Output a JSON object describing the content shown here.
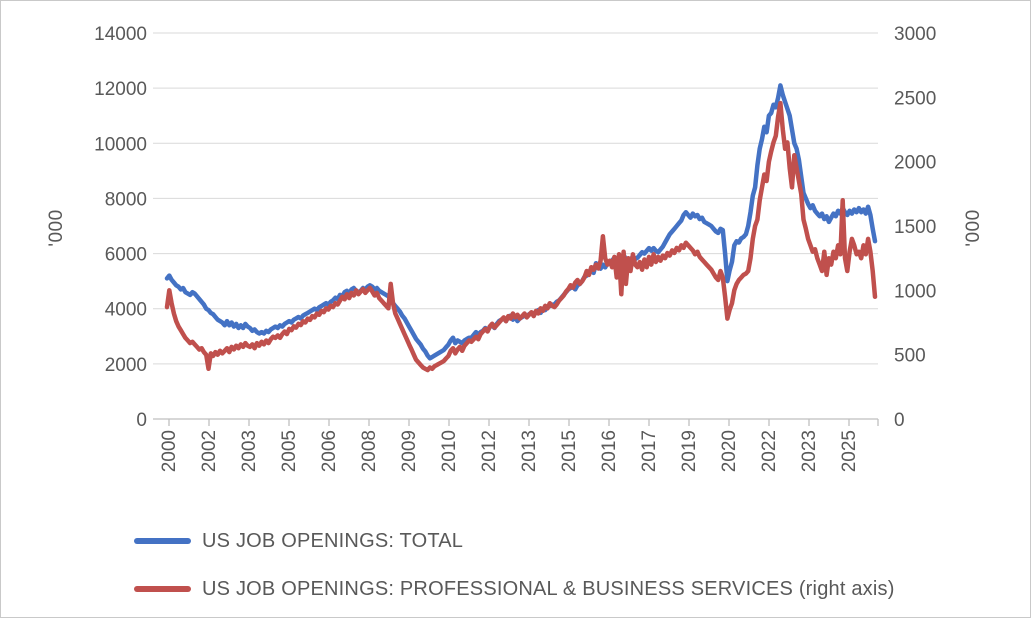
{
  "chart_data": {
    "type": "line",
    "title": "",
    "x_start_year": 2000,
    "x_months_per_point": 1,
    "x_tick_labels": [
      "2000",
      "2002",
      "2003",
      "2005",
      "2006",
      "2008",
      "2009",
      "2010",
      "2012",
      "2013",
      "2015",
      "2016",
      "2017",
      "2019",
      "2020",
      "2022",
      "2023",
      "2025"
    ],
    "left_axis": {
      "label": "'000",
      "ticks": [
        0,
        2000,
        4000,
        6000,
        8000,
        10000,
        12000,
        14000
      ],
      "min": 0,
      "max": 14000
    },
    "right_axis": {
      "label": "'000",
      "ticks": [
        0,
        500,
        1000,
        1500,
        2000,
        2500,
        3000
      ],
      "min": 0,
      "max": 3000
    },
    "grid": true,
    "legend_position": "bottom-left",
    "colors": {
      "gridline": "#d9d9d9",
      "axis_line": "#bfbfbf",
      "tick_text": "#595959"
    },
    "series": [
      {
        "name": "US JOB OPENINGS: TOTAL",
        "axis": "left",
        "color": "#4472c4",
        "values": [
          5100,
          5200,
          5050,
          4950,
          4850,
          4800,
          4700,
          4750,
          4600,
          4550,
          4500,
          4600,
          4550,
          4450,
          4350,
          4250,
          4150,
          4000,
          3950,
          3850,
          3800,
          3700,
          3600,
          3550,
          3500,
          3400,
          3550,
          3400,
          3500,
          3350,
          3450,
          3300,
          3400,
          3300,
          3450,
          3350,
          3300,
          3200,
          3250,
          3150,
          3100,
          3150,
          3100,
          3200,
          3150,
          3250,
          3300,
          3350,
          3300,
          3400,
          3350,
          3450,
          3500,
          3550,
          3500,
          3600,
          3650,
          3700,
          3650,
          3750,
          3800,
          3850,
          3900,
          3950,
          4000,
          3950,
          4050,
          4100,
          4150,
          4200,
          4150,
          4250,
          4300,
          4400,
          4350,
          4500,
          4450,
          4600,
          4650,
          4550,
          4700,
          4750,
          4650,
          4600,
          4650,
          4750,
          4700,
          4800,
          4850,
          4800,
          4700,
          4750,
          4650,
          4600,
          4550,
          4500,
          4450,
          4300,
          4200,
          4100,
          4000,
          3900,
          3750,
          3650,
          3500,
          3350,
          3200,
          3050,
          2900,
          2800,
          2700,
          2550,
          2450,
          2300,
          2200,
          2250,
          2300,
          2350,
          2400,
          2450,
          2500,
          2600,
          2700,
          2850,
          2950,
          2750,
          2850,
          2800,
          2750,
          2850,
          2900,
          2950,
          2950,
          3050,
          3150,
          3050,
          3150,
          3200,
          3300,
          3200,
          3350,
          3400,
          3300,
          3450,
          3550,
          3600,
          3650,
          3550,
          3700,
          3750,
          3600,
          3700,
          3550,
          3650,
          3700,
          3750,
          3700,
          3800,
          3850,
          3750,
          3900,
          3950,
          3850,
          4000,
          3950,
          4050,
          4100,
          4150,
          4150,
          4250,
          4300,
          4400,
          4500,
          4600,
          4700,
          4750,
          4800,
          4700,
          4850,
          4900,
          5000,
          5150,
          5200,
          5350,
          5400,
          5300,
          5650,
          5500,
          5450,
          5600,
          5500,
          5650,
          5700,
          5750,
          5850,
          5700,
          5900,
          5550,
          5950,
          5800,
          5650,
          5750,
          5900,
          5800,
          5850,
          5950,
          6050,
          6000,
          6100,
          6200,
          6100,
          6200,
          6100,
          6050,
          6150,
          6250,
          6400,
          6550,
          6700,
          6800,
          6900,
          7000,
          7100,
          7200,
          7400,
          7500,
          7400,
          7300,
          7450,
          7350,
          7400,
          7250,
          7300,
          7150,
          7100,
          7050,
          7000,
          6900,
          6800,
          6750,
          6900,
          6850,
          6000,
          5000,
          5400,
          5700,
          6300,
          6450,
          6400,
          6550,
          6600,
          6700,
          7000,
          7500,
          8100,
          8400,
          9200,
          9800,
          10150,
          10600,
          10400,
          11000,
          11100,
          11400,
          11300,
          11650,
          12100,
          11750,
          11500,
          11250,
          11000,
          10500,
          10000,
          9800,
          9400,
          8800,
          8200,
          8000,
          7800,
          7650,
          7750,
          7550,
          7450,
          7350,
          7450,
          7250,
          7350,
          7150,
          7300,
          7450,
          7350,
          7550,
          7450,
          7650,
          7500,
          7400,
          7550,
          7450,
          7600,
          7500,
          7650,
          7500,
          7600,
          7450,
          7700,
          7400,
          6900,
          6450
        ]
      },
      {
        "name": "US JOB OPENINGS: PROFESSIONAL & BUSINESS SERVICES (right axis)",
        "axis": "right",
        "color": "#c0504d",
        "values": [
          870,
          1000,
          900,
          820,
          760,
          720,
          690,
          660,
          630,
          610,
          590,
          600,
          580,
          560,
          540,
          550,
          520,
          500,
          390,
          510,
          490,
          520,
          500,
          530,
          510,
          530,
          550,
          520,
          560,
          540,
          570,
          550,
          580,
          560,
          590,
          570,
          560,
          580,
          550,
          590,
          570,
          600,
          580,
          610,
          590,
          620,
          640,
          630,
          650,
          630,
          660,
          680,
          660,
          700,
          690,
          720,
          710,
          740,
          730,
          760,
          750,
          780,
          770,
          800,
          790,
          820,
          810,
          840,
          830,
          860,
          850,
          880,
          870,
          900,
          890,
          920,
          950,
          930,
          970,
          940,
          980,
          960,
          1000,
          970,
          990,
          1010,
          980,
          1000,
          1020,
          990,
          960,
          980,
          940,
          920,
          900,
          880,
          860,
          1050,
          900,
          820,
          780,
          740,
          700,
          660,
          620,
          580,
          540,
          500,
          460,
          440,
          420,
          400,
          390,
          380,
          400,
          390,
          410,
          420,
          430,
          440,
          450,
          470,
          490,
          530,
          550,
          510,
          540,
          560,
          530,
          570,
          590,
          610,
          600,
          620,
          640,
          620,
          660,
          680,
          700,
          680,
          720,
          740,
          710,
          730,
          750,
          770,
          790,
          760,
          800,
          780,
          820,
          790,
          810,
          780,
          800,
          820,
          790,
          810,
          830,
          800,
          840,
          820,
          860,
          840,
          880,
          860,
          900,
          880,
          870,
          890,
          920,
          940,
          960,
          990,
          1010,
          1040,
          1020,
          1060,
          1080,
          1050,
          1070,
          1100,
          1150,
          1120,
          1180,
          1160,
          1200,
          1170,
          1230,
          1420,
          1250,
          1200,
          1230,
          1180,
          1260,
          1100,
          1280,
          970,
          1300,
          1050,
          1250,
          1150,
          1280,
          1200,
          1180,
          1220,
          1160,
          1240,
          1180,
          1260,
          1200,
          1280,
          1220,
          1260,
          1230,
          1270,
          1250,
          1290,
          1270,
          1310,
          1290,
          1330,
          1310,
          1350,
          1330,
          1370,
          1350,
          1330,
          1310,
          1280,
          1300,
          1260,
          1240,
          1220,
          1200,
          1180,
          1160,
          1130,
          1100,
          1080,
          1150,
          1100,
          950,
          780,
          850,
          900,
          1000,
          1050,
          1080,
          1100,
          1120,
          1130,
          1150,
          1250,
          1400,
          1500,
          1550,
          1700,
          1800,
          1900,
          1850,
          2000,
          2080,
          2150,
          2200,
          2350,
          2455,
          2250,
          2100,
          2150,
          1950,
          1800,
          2050,
          1950,
          1850,
          1750,
          1550,
          1480,
          1400,
          1350,
          1300,
          1320,
          1250,
          1200,
          1150,
          1300,
          1120,
          1250,
          1200,
          1300,
          1250,
          1350,
          1280,
          1700,
          1250,
          1150,
          1300,
          1400,
          1350,
          1280,
          1300,
          1250,
          1350,
          1280,
          1400,
          1300,
          1150,
          950
        ]
      }
    ]
  },
  "legend": {
    "items": [
      {
        "label": "US JOB OPENINGS: TOTAL"
      },
      {
        "label": "US JOB OPENINGS: PROFESSIONAL & BUSINESS SERVICES (right axis)"
      }
    ]
  }
}
